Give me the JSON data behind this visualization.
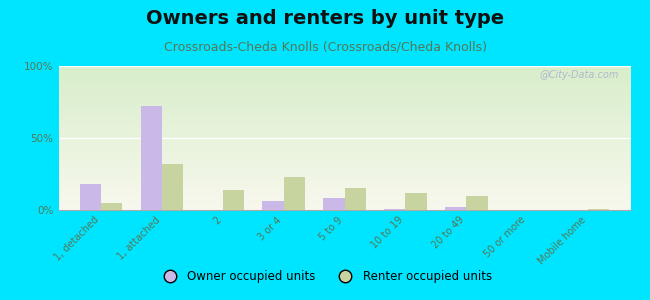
{
  "title": "Owners and renters by unit type",
  "subtitle": "Crossroads-Cheda Knolls (Crossroads/Cheda Knolls)",
  "categories": [
    "1, detached",
    "1, attached",
    "2",
    "3 or 4",
    "5 to 9",
    "10 to 19",
    "20 to 49",
    "50 or more",
    "Mobile home"
  ],
  "owner_values": [
    18,
    72,
    0,
    6,
    8,
    1,
    2,
    0,
    0
  ],
  "renter_values": [
    5,
    32,
    14,
    23,
    15,
    12,
    10,
    0,
    1
  ],
  "owner_color": "#c9b8e8",
  "renter_color": "#c8d4a0",
  "bg_top_color": "#d8eeca",
  "bg_bottom_color": "#f8f8ee",
  "outer_bg": "#00e5ff",
  "ylim": [
    0,
    100
  ],
  "yticks": [
    0,
    50,
    100
  ],
  "ytick_labels": [
    "0%",
    "50%",
    "100%"
  ],
  "bar_width": 0.35,
  "title_fontsize": 14,
  "subtitle_fontsize": 9,
  "legend_label_owner": "Owner occupied units",
  "legend_label_renter": "Renter occupied units",
  "watermark": "@City-Data.com"
}
